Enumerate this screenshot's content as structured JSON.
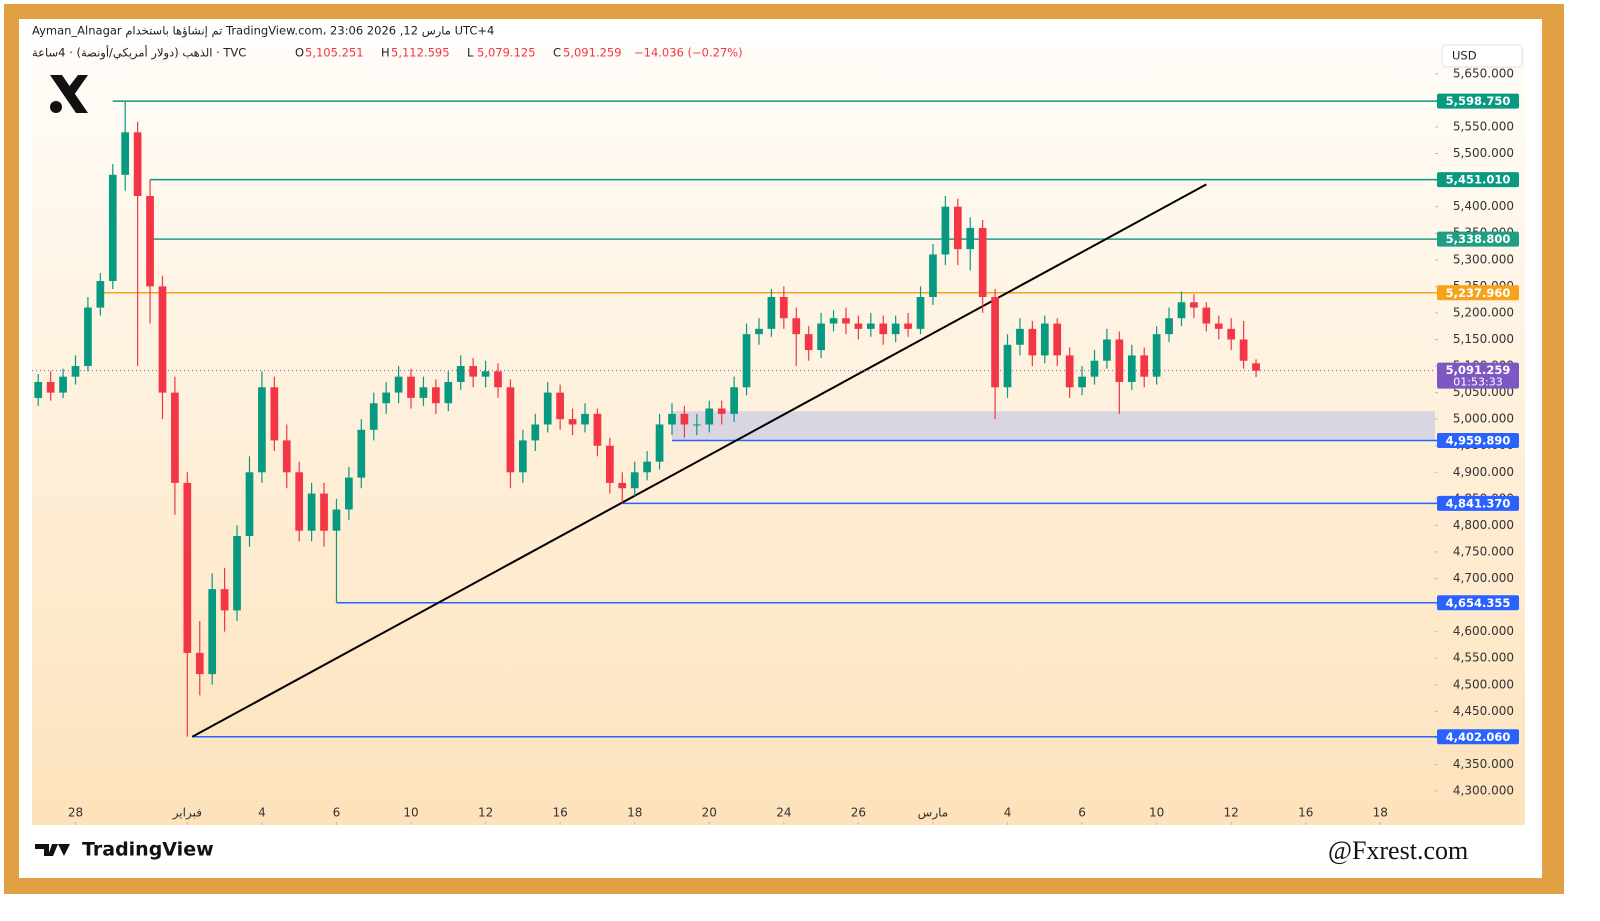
{
  "header": {
    "author_line": "Ayman_Alnagar تم إنشاؤها باستخدام TradingView.com، 23:06 2026 ,12 مارس UTC+4",
    "symbol": "الذهب (دولار أمريكي/أونصة) · 4ساعة · TVC",
    "ohlc": [
      {
        "key": "O",
        "value": "5,105.251"
      },
      {
        "key": "H",
        "value": "5,112.595"
      },
      {
        "key": "L",
        "value": "5,079.125"
      },
      {
        "key": "C",
        "value": "5,091.259"
      }
    ],
    "change": "−14.036 (−0.27%)",
    "currency": "USD"
  },
  "footer": {
    "brand": "TradingView",
    "watermark": "@Fxrest.com"
  },
  "chart_data": {
    "type": "candlestick",
    "up_color": "#089981",
    "down_color": "#f23645",
    "open": [
      5040,
      5070,
      5050,
      5080,
      5100,
      5210,
      5260,
      5460,
      5540,
      5420,
      5250,
      5050,
      4880,
      4560,
      4520,
      4680,
      4640,
      4780,
      4900,
      5060,
      4960,
      4900,
      4790,
      4860,
      4790,
      4830,
      4890,
      4980,
      5030,
      5050,
      5080,
      5040,
      5060,
      5030,
      5070,
      5100,
      5080,
      5090,
      5060,
      4900,
      4960,
      4990,
      5050,
      5000,
      4990,
      5010,
      4950,
      4880,
      4870,
      4900,
      4920,
      4990,
      5010,
      4990,
      4990,
      5020,
      5010,
      5060,
      5160,
      5170,
      5230,
      5190,
      5160,
      5130,
      5180,
      5190,
      5180,
      5170,
      5180,
      5160,
      5180,
      5170,
      5230,
      5310,
      5400,
      5320,
      5360,
      5230,
      5060,
      5140,
      5170,
      5120,
      5180,
      5120,
      5060,
      5080,
      5110,
      5150,
      5070,
      5120,
      5080,
      5160,
      5190,
      5220,
      5210,
      5180,
      5170,
      5150,
      5105.251
    ],
    "high": [
      5085,
      5090,
      5095,
      5120,
      5230,
      5275,
      5480,
      5598.75,
      5560,
      5451.01,
      5270,
      5080,
      4900,
      4620,
      4710,
      4720,
      4800,
      4930,
      5090,
      5080,
      4990,
      4920,
      4880,
      4880,
      4850,
      4910,
      5000,
      5050,
      5070,
      5100,
      5095,
      5080,
      5075,
      5090,
      5120,
      5115,
      5110,
      5105,
      5075,
      4980,
      5010,
      5070,
      5065,
      5020,
      5030,
      5020,
      4965,
      4900,
      4920,
      4940,
      5010,
      5030,
      5025,
      5010,
      5035,
      5035,
      5080,
      5180,
      5190,
      5245,
      5250,
      5210,
      5175,
      5200,
      5205,
      5210,
      5195,
      5200,
      5195,
      5195,
      5200,
      5250,
      5330,
      5420,
      5415,
      5380,
      5375,
      5245,
      5160,
      5190,
      5185,
      5195,
      5190,
      5135,
      5100,
      5130,
      5170,
      5165,
      5140,
      5135,
      5175,
      5210,
      5240,
      5235,
      5220,
      5195,
      5190,
      5185,
      5112.595
    ],
    "low": [
      5025,
      5035,
      5040,
      5065,
      5090,
      5195,
      5245,
      5430,
      5100,
      5180,
      5000,
      4820,
      4402.06,
      4480,
      4500,
      4600,
      4620,
      4760,
      4880,
      4940,
      4870,
      4770,
      4770,
      4760,
      4654.355,
      4810,
      4870,
      4960,
      5010,
      5030,
      5020,
      5025,
      5010,
      5015,
      5055,
      5060,
      5060,
      5040,
      4870,
      4880,
      4940,
      4975,
      4980,
      4970,
      4975,
      4930,
      4860,
      4841.37,
      4855,
      4885,
      4905,
      4970,
      4965,
      4970,
      4975,
      4990,
      4995,
      5045,
      5140,
      5155,
      5170,
      5100,
      5110,
      5115,
      5165,
      5160,
      5150,
      5155,
      5140,
      5145,
      5155,
      5160,
      5215,
      5290,
      5290,
      5280,
      5200,
      5000,
      5040,
      5120,
      5100,
      5105,
      5100,
      5040,
      5045,
      5065,
      5095,
      5010,
      5055,
      5060,
      5065,
      5145,
      5175,
      5190,
      5165,
      5150,
      5130,
      5095,
      5079.125
    ],
    "close": [
      5070,
      5050,
      5080,
      5100,
      5210,
      5260,
      5460,
      5540,
      5420,
      5250,
      5050,
      4880,
      4560,
      4520,
      4680,
      4640,
      4780,
      4900,
      5060,
      4960,
      4900,
      4790,
      4860,
      4790,
      4830,
      4890,
      4980,
      5030,
      5050,
      5080,
      5040,
      5060,
      5030,
      5070,
      5100,
      5080,
      5090,
      5060,
      4900,
      4960,
      4990,
      5050,
      5000,
      4990,
      5010,
      4950,
      4880,
      4870,
      4900,
      4920,
      4990,
      5010,
      4990,
      4990,
      5020,
      5010,
      5060,
      5160,
      5170,
      5230,
      5190,
      5160,
      5130,
      5180,
      5190,
      5180,
      5170,
      5180,
      5160,
      5180,
      5170,
      5230,
      5310,
      5400,
      5320,
      5360,
      5230,
      5060,
      5140,
      5170,
      5120,
      5180,
      5120,
      5060,
      5080,
      5110,
      5150,
      5070,
      5120,
      5080,
      5160,
      5190,
      5220,
      5210,
      5180,
      5170,
      5150,
      5110,
      5091.259
    ],
    "xlim": [
      -0.5,
      112.4
    ],
    "xticks": [
      {
        "value": 3,
        "label": "28"
      },
      {
        "value": 12,
        "label": "فبراير"
      },
      {
        "value": 18,
        "label": "4"
      },
      {
        "value": 24,
        "label": "6"
      },
      {
        "value": 30,
        "label": "10"
      },
      {
        "value": 36,
        "label": "12"
      },
      {
        "value": 42,
        "label": "16"
      },
      {
        "value": 48,
        "label": "18"
      },
      {
        "value": 54,
        "label": "20"
      },
      {
        "value": 60,
        "label": "24"
      },
      {
        "value": 66,
        "label": "26"
      },
      {
        "value": 72,
        "label": "مارس"
      },
      {
        "value": 78,
        "label": "4"
      },
      {
        "value": 84,
        "label": "6"
      },
      {
        "value": 90,
        "label": "10"
      },
      {
        "value": 96,
        "label": "12"
      },
      {
        "value": 102,
        "label": "16"
      },
      {
        "value": 108,
        "label": "18"
      }
    ],
    "ylim": [
      4236,
      5710
    ],
    "yticks": [
      {
        "value": 5650,
        "label": "5,650.000"
      },
      {
        "value": 5600,
        "label": "5,600.000"
      },
      {
        "value": 5550,
        "label": "5,550.000"
      },
      {
        "value": 5500,
        "label": "5,500.000"
      },
      {
        "value": 5450,
        "label": "5,450.000"
      },
      {
        "value": 5400,
        "label": "5,400.000"
      },
      {
        "value": 5350,
        "label": "5,350.000"
      },
      {
        "value": 5300,
        "label": "5,300.000"
      },
      {
        "value": 5250,
        "label": "5,250.000"
      },
      {
        "value": 5200,
        "label": "5,200.000"
      },
      {
        "value": 5150,
        "label": "5,150.000"
      },
      {
        "value": 5100,
        "label": "5,100.000"
      },
      {
        "value": 5050,
        "label": "5,050.000"
      },
      {
        "value": 5000,
        "label": "5,000.000"
      },
      {
        "value": 4950,
        "label": "4,950.000"
      },
      {
        "value": 4900,
        "label": "4,900.000"
      },
      {
        "value": 4850,
        "label": "4,850.000"
      },
      {
        "value": 4800,
        "label": "4,800.000"
      },
      {
        "value": 4750,
        "label": "4,750.000"
      },
      {
        "value": 4700,
        "label": "4,700.000"
      },
      {
        "value": 4650,
        "label": "4,650.000"
      },
      {
        "value": 4600,
        "label": "4,600.000"
      },
      {
        "value": 4550,
        "label": "4,550.000"
      },
      {
        "value": 4500,
        "label": "4,500.000"
      },
      {
        "value": 4450,
        "label": "4,450.000"
      },
      {
        "value": 4400,
        "label": "4,400.000"
      },
      {
        "value": 4350,
        "label": "4,350.000"
      },
      {
        "value": 4300,
        "label": "4,300.000"
      }
    ],
    "levels": [
      {
        "value": 5598.75,
        "label": "5,598.750",
        "from": 6,
        "color": "#089981"
      },
      {
        "value": 5451.01,
        "label": "5,451.010",
        "from": 9,
        "color": "#089981"
      },
      {
        "value": 5338.8,
        "label": "5,338.800",
        "from": 9,
        "color": "#1e9e86"
      },
      {
        "value": 5237.96,
        "label": "5,237.960",
        "from": 5,
        "color": "#f7a21b"
      },
      {
        "value": 4959.89,
        "label": "4,959.890",
        "from": 51,
        "color": "#2962ff"
      },
      {
        "value": 4841.37,
        "label": "4,841.370",
        "from": 47,
        "color": "#2962ff"
      },
      {
        "value": 4654.355,
        "label": "4,654.355",
        "from": 24,
        "color": "#2962ff"
      },
      {
        "value": 4402.06,
        "label": "4,402.060",
        "from": 12.4,
        "color": "#2962ff"
      }
    ],
    "zone": {
      "from": 51,
      "ylim": [
        4959.89,
        5015
      ],
      "color": "#d9d6e2"
    },
    "trendline": {
      "x": [
        12.4,
        94
      ],
      "y": [
        4402.06,
        5442
      ],
      "color": "#000000"
    },
    "last_price": {
      "value": 5091.259,
      "label": "5,091.259",
      "countdown": "01:53:33",
      "color": "#7e57c2"
    }
  }
}
